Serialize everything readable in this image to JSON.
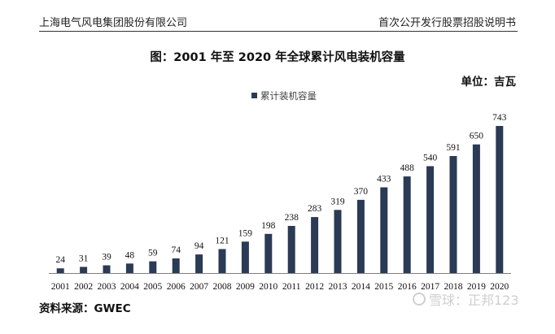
{
  "header": {
    "left": "上海电气风电集团股份有限公司",
    "right": "首次公开发行股票招股说明书"
  },
  "unit_label": "单位：吉瓦",
  "source": "资料来源：GWEC",
  "watermark": "雪球：正邦123",
  "colors": {
    "bar": "#2b3a55",
    "axis": "#7f7f7f"
  },
  "chart_data": {
    "type": "bar",
    "title": "图：2001 年至 2020 年全球累计风电装机容量",
    "categories": [
      "2001",
      "2002",
      "2003",
      "2004",
      "2005",
      "2006",
      "2007",
      "2008",
      "2009",
      "2010",
      "2011",
      "2012",
      "2013",
      "2014",
      "2015",
      "2016",
      "2017",
      "2018",
      "2019",
      "2020"
    ],
    "series": [
      {
        "name": "累计装机容量",
        "values": [
          24,
          31,
          39,
          48,
          59,
          74,
          94,
          121,
          159,
          198,
          238,
          283,
          319,
          370,
          433,
          488,
          540,
          591,
          650,
          743
        ]
      }
    ],
    "data_labels": true,
    "legend_position": "top-left",
    "grid": false,
    "ylim": [
      0,
      743
    ]
  }
}
